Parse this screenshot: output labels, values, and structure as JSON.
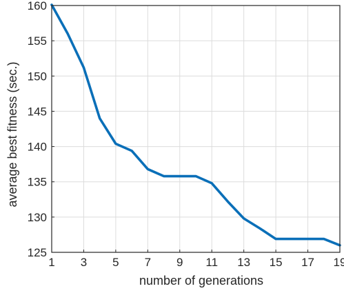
{
  "chart_data": {
    "type": "line",
    "title": "",
    "xlabel": "number of generations",
    "ylabel": "average best fitness (sec.)",
    "xlim": [
      1,
      19
    ],
    "ylim": [
      125,
      160
    ],
    "xticks": [
      1,
      3,
      5,
      7,
      9,
      11,
      13,
      15,
      17,
      19
    ],
    "yticks": [
      125,
      130,
      135,
      140,
      145,
      150,
      155,
      160
    ],
    "grid": true,
    "line_color": "#0a6fb8",
    "series": [
      {
        "x": [
          1,
          2,
          3,
          4,
          5,
          6,
          7,
          8,
          9,
          10,
          11,
          12,
          13,
          14,
          15,
          16,
          17,
          18,
          19
        ],
        "values": [
          160.1,
          156.0,
          151.2,
          144.0,
          140.4,
          139.4,
          136.8,
          135.8,
          135.8,
          135.8,
          134.8,
          132.2,
          129.8,
          128.4,
          126.9,
          126.9,
          126.9,
          126.9,
          126.0
        ]
      }
    ]
  }
}
